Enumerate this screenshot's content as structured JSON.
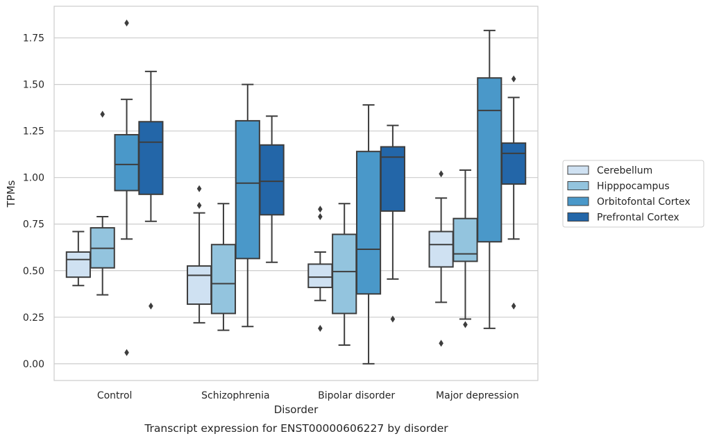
{
  "chart_data": {
    "type": "box",
    "title": "Transcript expression for ENST00000606227 by disorder",
    "xlabel": "Disorder",
    "ylabel": "TPMs",
    "ylim": [
      -0.09,
      1.92
    ],
    "yticks": [
      "0.00",
      "0.25",
      "0.50",
      "0.75",
      "1.00",
      "1.25",
      "1.50",
      "1.75"
    ],
    "grid": "horizontal",
    "legend_position": "right",
    "categories": [
      "Control",
      "Schizophrenia",
      "Bipolar disorder",
      "Major depression"
    ],
    "series": [
      {
        "name": "Cerebellum",
        "color": "#cfe1f2",
        "boxes": [
          {
            "whislo": 0.42,
            "q1": 0.465,
            "med": 0.56,
            "q3": 0.6,
            "whishi": 0.71,
            "fliers": []
          },
          {
            "whislo": 0.22,
            "q1": 0.32,
            "med": 0.475,
            "q3": 0.525,
            "whishi": 0.81,
            "fliers": [
              0.85,
              0.94
            ]
          },
          {
            "whislo": 0.34,
            "q1": 0.41,
            "med": 0.465,
            "q3": 0.535,
            "whishi": 0.6,
            "fliers": [
              0.19,
              0.79,
              0.83
            ]
          },
          {
            "whislo": 0.33,
            "q1": 0.52,
            "med": 0.64,
            "q3": 0.71,
            "whishi": 0.89,
            "fliers": [
              0.11,
              1.02
            ]
          }
        ]
      },
      {
        "name": "Hipppocampus",
        "color": "#93c4de",
        "boxes": [
          {
            "whislo": 0.37,
            "q1": 0.515,
            "med": 0.62,
            "q3": 0.73,
            "whishi": 0.79,
            "fliers": [
              1.34
            ]
          },
          {
            "whislo": 0.18,
            "q1": 0.27,
            "med": 0.43,
            "q3": 0.64,
            "whishi": 0.86,
            "fliers": []
          },
          {
            "whislo": 0.1,
            "q1": 0.27,
            "med": 0.495,
            "q3": 0.695,
            "whishi": 0.86,
            "fliers": []
          },
          {
            "whislo": 0.24,
            "q1": 0.55,
            "med": 0.59,
            "q3": 0.78,
            "whishi": 1.04,
            "fliers": [
              0.21
            ]
          }
        ]
      },
      {
        "name": "Orbitofontal Cortex",
        "color": "#4a98c9",
        "boxes": [
          {
            "whislo": 0.67,
            "q1": 0.93,
            "med": 1.07,
            "q3": 1.23,
            "whishi": 1.42,
            "fliers": [
              0.06,
              1.83
            ]
          },
          {
            "whislo": 0.2,
            "q1": 0.565,
            "med": 0.97,
            "q3": 1.305,
            "whishi": 1.5,
            "fliers": []
          },
          {
            "whislo": 0.0,
            "q1": 0.375,
            "med": 0.615,
            "q3": 1.14,
            "whishi": 1.39,
            "fliers": []
          },
          {
            "whislo": 0.19,
            "q1": 0.655,
            "med": 1.36,
            "q3": 1.535,
            "whishi": 1.79,
            "fliers": []
          }
        ]
      },
      {
        "name": "Prefrontal Cortex",
        "color": "#2366a8",
        "boxes": [
          {
            "whislo": 0.765,
            "q1": 0.91,
            "med": 1.19,
            "q3": 1.3,
            "whishi": 1.57,
            "fliers": [
              0.31
            ]
          },
          {
            "whislo": 0.545,
            "q1": 0.8,
            "med": 0.98,
            "q3": 1.175,
            "whishi": 1.33,
            "fliers": []
          },
          {
            "whislo": 0.455,
            "q1": 0.82,
            "med": 1.11,
            "q3": 1.165,
            "whishi": 1.28,
            "fliers": [
              0.24
            ]
          },
          {
            "whislo": 0.67,
            "q1": 0.965,
            "med": 1.13,
            "q3": 1.185,
            "whishi": 1.43,
            "fliers": [
              0.31,
              1.53
            ]
          }
        ]
      }
    ]
  }
}
